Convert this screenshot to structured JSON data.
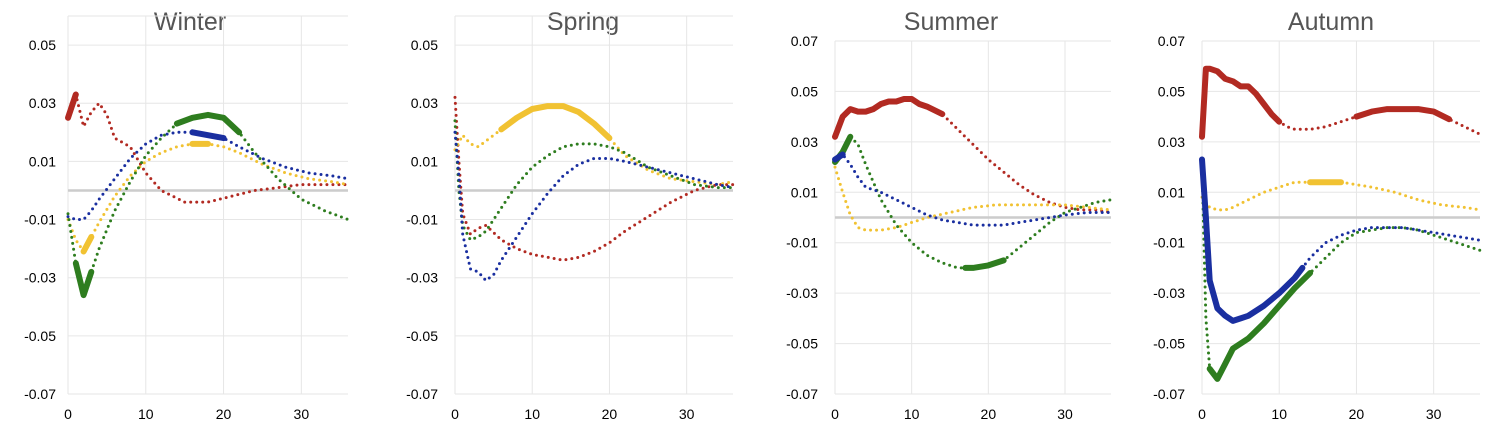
{
  "colors": {
    "red": "#b22a22",
    "yellow": "#f1c232",
    "green": "#2e7d1f",
    "blue": "#1a2fa0",
    "zero_line": "#cccccc",
    "grid": "#e6e6e6",
    "title": "#555555"
  },
  "chart_data": [
    {
      "type": "line",
      "title": "Winter",
      "xlim": [
        0,
        36
      ],
      "ylim": [
        -0.07,
        0.06
      ],
      "yticks": [
        "0.05",
        "0.03",
        "0.01",
        "-0.01",
        "-0.03",
        "-0.05",
        "-0.07"
      ],
      "xticks": [
        "0",
        "10",
        "20",
        "30"
      ],
      "grid": true,
      "series": [
        {
          "color": "red",
          "x": [
            0,
            1,
            2,
            3,
            4,
            5,
            6,
            8,
            10,
            12,
            15,
            18,
            21,
            24,
            27,
            30,
            33,
            36
          ],
          "y": [
            0.025,
            0.033,
            0.022,
            0.027,
            0.03,
            0.026,
            0.018,
            0.015,
            0.006,
            0.0,
            -0.004,
            -0.004,
            -0.002,
            0.0,
            0.001,
            0.002,
            0.002,
            0.002
          ],
          "solid": [
            [
              0,
              1
            ]
          ]
        },
        {
          "color": "yellow",
          "x": [
            0,
            1,
            2,
            3,
            4,
            6,
            8,
            10,
            12,
            14,
            16,
            18,
            20,
            22,
            25,
            28,
            31,
            34,
            36
          ],
          "y": [
            -0.01,
            -0.017,
            -0.021,
            -0.016,
            -0.011,
            -0.002,
            0.005,
            0.01,
            0.013,
            0.015,
            0.016,
            0.016,
            0.015,
            0.013,
            0.009,
            0.006,
            0.004,
            0.003,
            0.002
          ],
          "solid": [
            [
              2,
              3
            ],
            [
              16,
              19
            ]
          ]
        },
        {
          "color": "green",
          "x": [
            0,
            1,
            2,
            3,
            4,
            6,
            8,
            10,
            12,
            14,
            16,
            18,
            20,
            22,
            24,
            27,
            30,
            33,
            36
          ],
          "y": [
            -0.008,
            -0.025,
            -0.036,
            -0.028,
            -0.02,
            -0.007,
            0.003,
            0.012,
            0.018,
            0.023,
            0.025,
            0.026,
            0.025,
            0.02,
            0.013,
            0.004,
            -0.003,
            -0.007,
            -0.01
          ],
          "solid": [
            [
              1,
              3
            ],
            [
              14,
              22
            ]
          ]
        },
        {
          "color": "blue",
          "x": [
            0,
            1,
            2,
            3,
            4,
            6,
            8,
            10,
            12,
            14,
            16,
            18,
            20,
            22,
            25,
            28,
            31,
            34,
            36
          ],
          "y": [
            -0.009,
            -0.01,
            -0.01,
            -0.007,
            -0.003,
            0.004,
            0.011,
            0.016,
            0.019,
            0.02,
            0.02,
            0.019,
            0.018,
            0.015,
            0.011,
            0.008,
            0.006,
            0.005,
            0.004
          ],
          "solid": [
            [
              15,
              21
            ]
          ]
        }
      ]
    },
    {
      "type": "line",
      "title": "Spring",
      "xlim": [
        0,
        36
      ],
      "ylim": [
        -0.07,
        0.06
      ],
      "yticks": [
        "0.05",
        "0.03",
        "0.01",
        "-0.01",
        "-0.03",
        "-0.05",
        "-0.07"
      ],
      "xticks": [
        "0",
        "10",
        "20",
        "30"
      ],
      "grid": true,
      "series": [
        {
          "color": "red",
          "x": [
            0,
            0.5,
            1,
            2,
            3,
            4,
            6,
            8,
            10,
            12,
            14,
            16,
            18,
            20,
            22,
            25,
            28,
            31,
            34,
            36
          ],
          "y": [
            0.032,
            0.01,
            -0.008,
            -0.015,
            -0.013,
            -0.012,
            -0.017,
            -0.02,
            -0.022,
            -0.023,
            -0.024,
            -0.023,
            -0.021,
            -0.018,
            -0.014,
            -0.009,
            -0.004,
            0.0,
            0.002,
            0.002
          ],
          "solid": []
        },
        {
          "color": "yellow",
          "x": [
            0,
            1,
            2,
            3,
            4,
            6,
            8,
            10,
            12,
            14,
            16,
            18,
            20,
            22,
            25,
            28,
            31,
            34,
            36
          ],
          "y": [
            0.014,
            0.019,
            0.016,
            0.015,
            0.017,
            0.021,
            0.025,
            0.028,
            0.029,
            0.029,
            0.027,
            0.023,
            0.018,
            0.012,
            0.007,
            0.004,
            0.003,
            0.002,
            0.003
          ],
          "solid": [
            [
              6,
              20
            ]
          ]
        },
        {
          "color": "green",
          "x": [
            0,
            0.5,
            1,
            2,
            3,
            4,
            6,
            8,
            10,
            12,
            14,
            16,
            18,
            20,
            22,
            25,
            28,
            31,
            34,
            36
          ],
          "y": [
            0.024,
            0.0,
            -0.012,
            -0.017,
            -0.016,
            -0.014,
            -0.006,
            0.002,
            0.008,
            0.012,
            0.015,
            0.016,
            0.016,
            0.015,
            0.013,
            0.008,
            0.005,
            0.002,
            0.001,
            0.001
          ],
          "solid": []
        },
        {
          "color": "blue",
          "x": [
            0,
            0.5,
            1,
            2,
            3,
            4,
            5,
            6,
            8,
            10,
            12,
            14,
            16,
            18,
            20,
            22,
            25,
            28,
            31,
            34,
            36
          ],
          "y": [
            0.02,
            0.005,
            -0.015,
            -0.027,
            -0.028,
            -0.031,
            -0.029,
            -0.024,
            -0.016,
            -0.008,
            -0.001,
            0.005,
            0.009,
            0.011,
            0.011,
            0.01,
            0.008,
            0.006,
            0.004,
            0.002,
            0.001
          ],
          "solid": []
        }
      ]
    },
    {
      "type": "line",
      "title": "Summer",
      "xlim": [
        0,
        36
      ],
      "ylim": [
        -0.07,
        0.07
      ],
      "yticks": [
        "0.07",
        "0.05",
        "0.03",
        "0.01",
        "-0.01",
        "-0.03",
        "-0.05",
        "-0.07"
      ],
      "xticks": [
        "0",
        "10",
        "20",
        "30"
      ],
      "grid": true,
      "series": [
        {
          "color": "red",
          "x": [
            0,
            1,
            2,
            3,
            4,
            5,
            6,
            7,
            8,
            9,
            10,
            11,
            12,
            14,
            16,
            18,
            20,
            22,
            24,
            26,
            28,
            30,
            32,
            34,
            36
          ],
          "y": [
            0.032,
            0.04,
            0.043,
            0.042,
            0.042,
            0.043,
            0.045,
            0.046,
            0.046,
            0.047,
            0.047,
            0.045,
            0.044,
            0.041,
            0.035,
            0.029,
            0.023,
            0.018,
            0.013,
            0.009,
            0.006,
            0.004,
            0.003,
            0.003,
            0.002
          ],
          "solid": [
            [
              0,
              14
            ]
          ]
        },
        {
          "color": "yellow",
          "x": [
            0,
            1,
            2,
            3,
            4,
            5,
            6,
            8,
            10,
            12,
            15,
            18,
            21,
            24,
            27,
            30,
            33,
            36
          ],
          "y": [
            0.02,
            0.01,
            0.001,
            -0.004,
            -0.005,
            -0.005,
            -0.005,
            -0.004,
            -0.002,
            0.0,
            0.002,
            0.004,
            0.005,
            0.005,
            0.005,
            0.005,
            0.004,
            0.003
          ],
          "solid": []
        },
        {
          "color": "green",
          "x": [
            0,
            1,
            2,
            3,
            4,
            6,
            8,
            10,
            12,
            14,
            16,
            17,
            18,
            20,
            22,
            24,
            26,
            28,
            30,
            32,
            34,
            36
          ],
          "y": [
            0.022,
            0.026,
            0.032,
            0.029,
            0.021,
            0.007,
            -0.003,
            -0.01,
            -0.015,
            -0.018,
            -0.02,
            -0.02,
            -0.02,
            -0.019,
            -0.017,
            -0.012,
            -0.007,
            -0.002,
            0.002,
            0.004,
            0.006,
            0.007
          ],
          "solid": [
            [
              0,
              2
            ],
            [
              17,
              22
            ]
          ]
        },
        {
          "color": "blue",
          "x": [
            0,
            1,
            2,
            3,
            4,
            6,
            8,
            10,
            12,
            14,
            16,
            18,
            20,
            22,
            24,
            26,
            28,
            30,
            33,
            36
          ],
          "y": [
            0.023,
            0.025,
            0.021,
            0.016,
            0.012,
            0.01,
            0.007,
            0.004,
            0.001,
            -0.001,
            -0.002,
            -0.003,
            -0.003,
            -0.003,
            -0.002,
            -0.001,
            0.0,
            0.001,
            0.002,
            0.002
          ],
          "solid": [
            [
              0,
              1
            ]
          ]
        }
      ]
    },
    {
      "type": "line",
      "title": "Autumn",
      "xlim": [
        0,
        36
      ],
      "ylim": [
        -0.07,
        0.07
      ],
      "yticks": [
        "0.07",
        "0.05",
        "0.03",
        "0.01",
        "-0.01",
        "-0.03",
        "-0.05",
        "-0.07"
      ],
      "xticks": [
        "0",
        "10",
        "20",
        "30"
      ],
      "grid": true,
      "series": [
        {
          "color": "red",
          "x": [
            0,
            0.5,
            1,
            2,
            3,
            4,
            5,
            6,
            7,
            8,
            9,
            10,
            11,
            12,
            14,
            16,
            18,
            20,
            22,
            24,
            26,
            28,
            30,
            32,
            34,
            36
          ],
          "y": [
            0.032,
            0.059,
            0.059,
            0.058,
            0.055,
            0.054,
            0.052,
            0.052,
            0.049,
            0.045,
            0.041,
            0.038,
            0.036,
            0.035,
            0.035,
            0.036,
            0.038,
            0.04,
            0.042,
            0.043,
            0.043,
            0.043,
            0.042,
            0.039,
            0.036,
            0.033
          ],
          "solid": [
            [
              0,
              10
            ],
            [
              19,
              33
            ]
          ]
        },
        {
          "color": "yellow",
          "x": [
            0,
            1,
            2,
            3,
            4,
            6,
            8,
            10,
            12,
            14,
            16,
            18,
            20,
            22,
            25,
            28,
            31,
            34,
            36
          ],
          "y": [
            0.008,
            0.004,
            0.003,
            0.003,
            0.004,
            0.007,
            0.01,
            0.012,
            0.014,
            0.014,
            0.014,
            0.014,
            0.013,
            0.012,
            0.01,
            0.007,
            0.005,
            0.004,
            0.003
          ],
          "solid": [
            [
              14,
              19
            ]
          ]
        },
        {
          "color": "green",
          "x": [
            0,
            0.5,
            1,
            2,
            3,
            4,
            6,
            8,
            10,
            12,
            14,
            16,
            18,
            20,
            22,
            24,
            26,
            28,
            30,
            32,
            34,
            36
          ],
          "y": [
            0.02,
            -0.04,
            -0.06,
            -0.064,
            -0.058,
            -0.052,
            -0.048,
            -0.042,
            -0.035,
            -0.028,
            -0.022,
            -0.016,
            -0.01,
            -0.006,
            -0.005,
            -0.004,
            -0.004,
            -0.005,
            -0.007,
            -0.009,
            -0.011,
            -0.013
          ],
          "solid": [
            [
              1,
              15
            ]
          ]
        },
        {
          "color": "blue",
          "x": [
            0,
            0.5,
            1,
            2,
            3,
            4,
            5,
            6,
            8,
            10,
            12,
            13,
            14,
            16,
            18,
            20,
            22,
            24,
            26,
            28,
            30,
            32,
            34,
            36
          ],
          "y": [
            0.023,
            0.0,
            -0.025,
            -0.036,
            -0.039,
            -0.041,
            -0.04,
            -0.039,
            -0.035,
            -0.03,
            -0.024,
            -0.02,
            -0.016,
            -0.01,
            -0.007,
            -0.005,
            -0.004,
            -0.004,
            -0.004,
            -0.005,
            -0.006,
            -0.007,
            -0.008,
            -0.009
          ],
          "solid": [
            [
              0,
              13
            ]
          ]
        }
      ]
    }
  ]
}
